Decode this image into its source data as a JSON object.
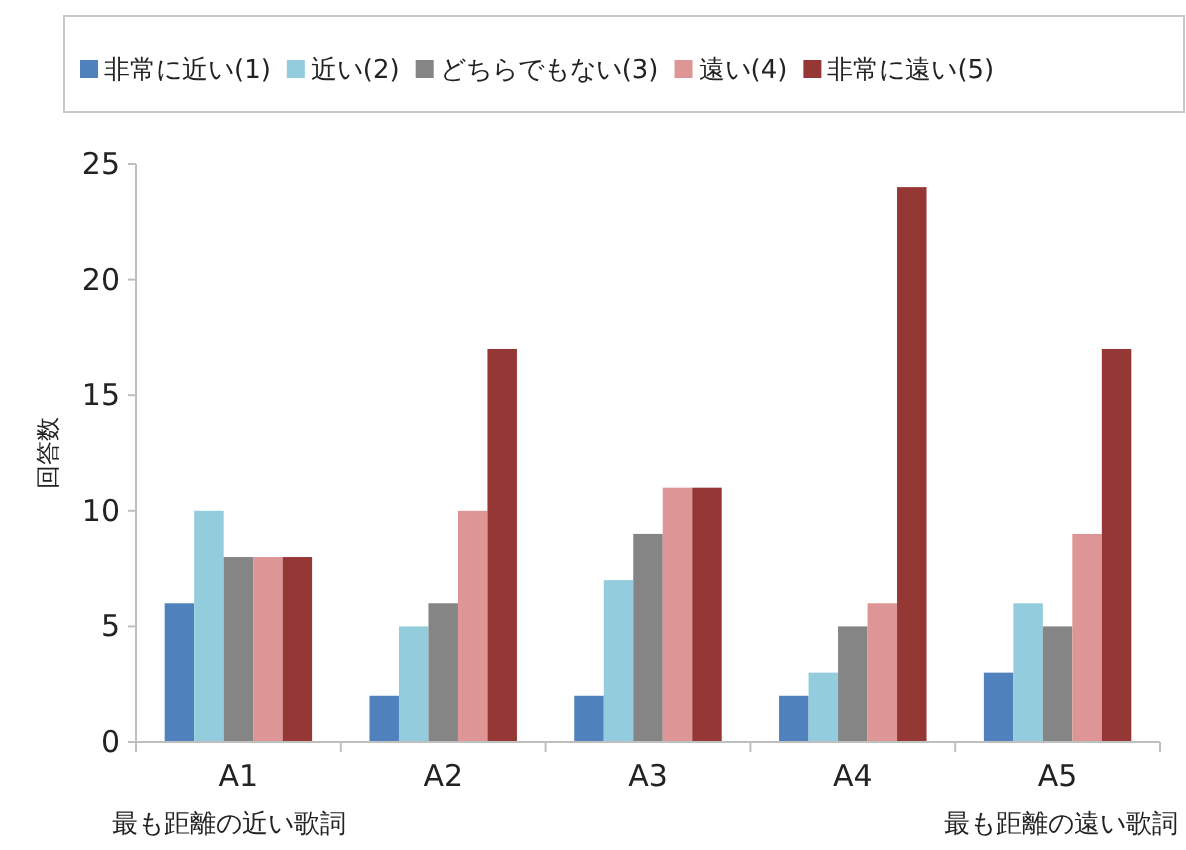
{
  "chart_data": {
    "type": "bar",
    "ylabel": "回答数",
    "categories": [
      "A1",
      "A2",
      "A3",
      "A4",
      "A5"
    ],
    "series": [
      {
        "name": "非常に近い(1)",
        "color": "#4f81bd",
        "values": [
          6,
          2,
          2,
          2,
          3
        ]
      },
      {
        "name": "近い(2)",
        "color": "#93cddd",
        "values": [
          10,
          5,
          7,
          3,
          6
        ]
      },
      {
        "name": "どちらでもない(3)",
        "color": "#858585",
        "values": [
          8,
          6,
          9,
          5,
          5
        ]
      },
      {
        "name": "遠い(4)",
        "color": "#dd9595",
        "values": [
          8,
          10,
          11,
          6,
          9
        ]
      },
      {
        "name": "非常に遠い(5)",
        "color": "#953735",
        "values": [
          8,
          17,
          11,
          24,
          17
        ]
      }
    ],
    "ylim": [
      0,
      25
    ],
    "yticks": [
      0,
      5,
      10,
      15,
      20,
      25
    ],
    "grid": false,
    "legend": "top",
    "annotations": [
      "最も距離の近い歌詞",
      "最も距離の遠い歌詞"
    ]
  }
}
